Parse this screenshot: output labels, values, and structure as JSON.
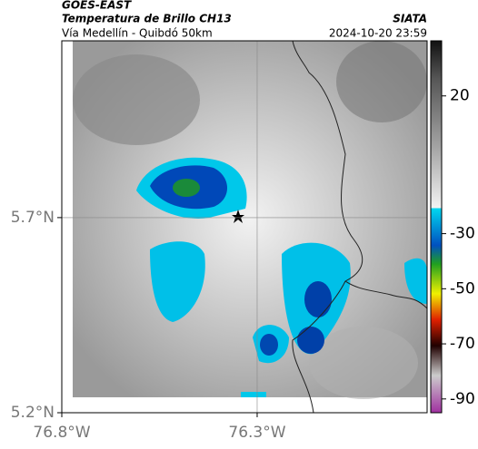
{
  "header": {
    "source": "GOES-EAST",
    "title": "Temperatura de Brillo CH13",
    "org": "SIATA",
    "subtitle": "Vía Medellín - Quibdó 50km",
    "datetime": "2024-10-20 23:59"
  },
  "map": {
    "xlim": [
      -76.8,
      -75.865
    ],
    "ylim": [
      5.2,
      6.153
    ],
    "xticks": [
      {
        "value": -76.8,
        "label": "76.8°W"
      },
      {
        "value": -76.3,
        "label": "76.3°W"
      }
    ],
    "yticks": [
      {
        "value": 5.2,
        "label": "5.2°N"
      },
      {
        "value": 5.7,
        "label": "5.7°N"
      }
    ],
    "grid": true
  },
  "colorbar": {
    "lim": [
      -95,
      40
    ],
    "ticks": [
      20,
      -30,
      -50,
      -70,
      -90
    ]
  }
}
